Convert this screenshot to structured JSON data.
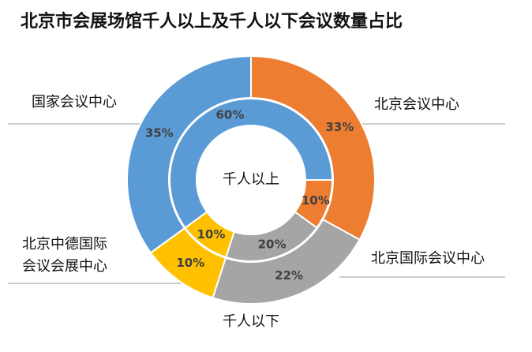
{
  "chart_data": {
    "type": "donut",
    "title": "北京市会展场馆千人以上及千人以下会议数量占比",
    "categories": [
      "国家会议中心",
      "北京会议中心",
      "北京国际会议中心",
      "北京中德国际会议会展中心"
    ],
    "colors": [
      "#5b9bd5",
      "#ed7d31",
      "#a5a5a5",
      "#ffc000"
    ],
    "series": [
      {
        "name": "千人以下",
        "values": [
          35,
          33,
          22,
          10
        ],
        "value_labels": [
          "35%",
          "33%",
          "22%",
          "10%"
        ]
      },
      {
        "name": "千人以上",
        "values": [
          60,
          10,
          20,
          10
        ],
        "value_labels": [
          "60%",
          "10%",
          "20%",
          "10%"
        ]
      }
    ]
  }
}
